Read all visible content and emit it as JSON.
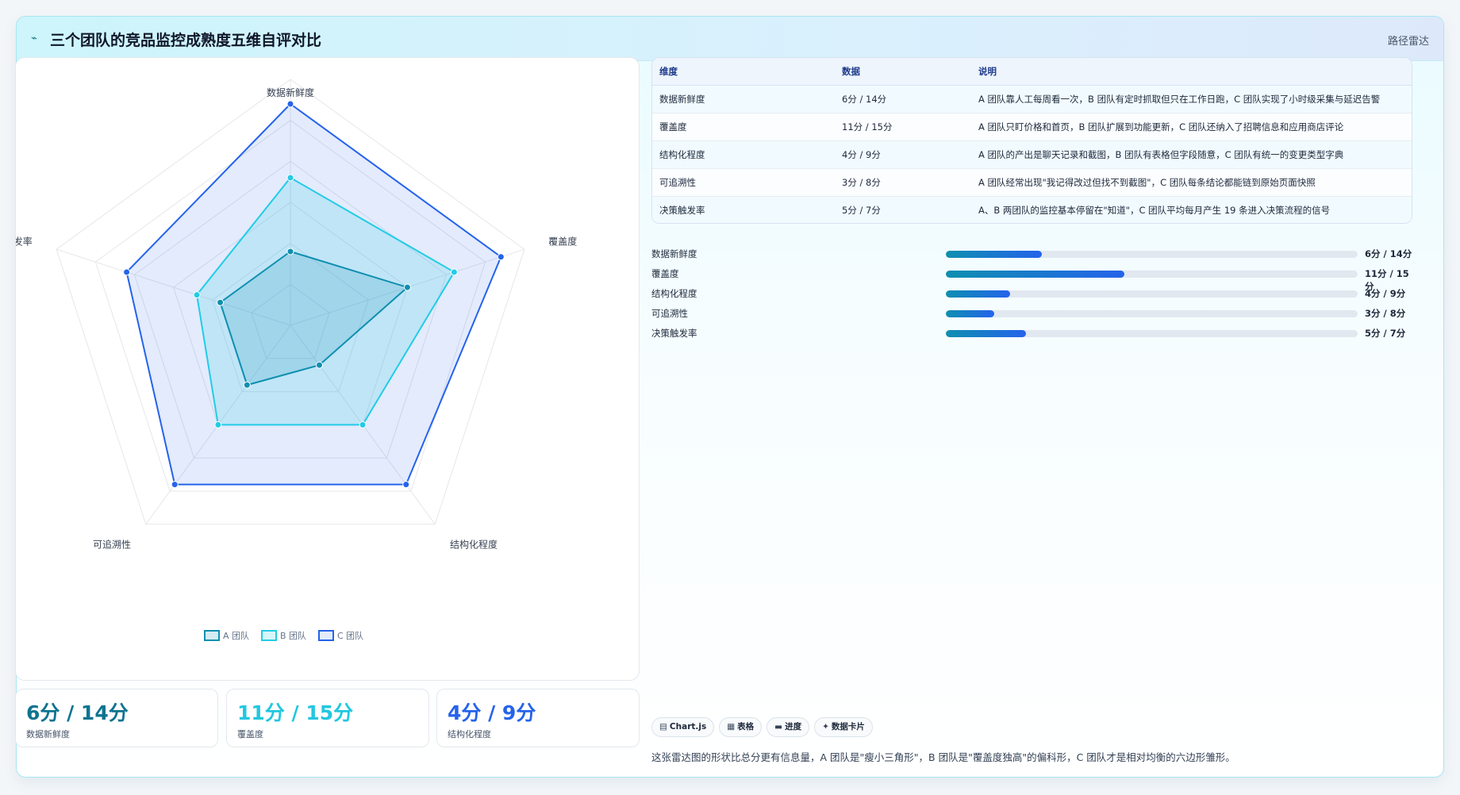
{
  "header": {
    "icon": "trend-line-icon",
    "icon_glyph": "⌁",
    "title": "三个团队的竞品监控成熟度五维自评对比",
    "tag": "路径雷达"
  },
  "chart_data": {
    "type": "radar",
    "axes": [
      "数据新鲜度",
      "覆盖度",
      "结构化程度",
      "可追溯性",
      "决策触发率"
    ],
    "rlim": [
      0,
      10
    ],
    "rings": 6,
    "grid": true,
    "legend_position": "bottom",
    "series": [
      {
        "name": "A 团队",
        "values": [
          3,
          5,
          2,
          3,
          3
        ],
        "color": "#0e8fb0",
        "fill": "rgba(14,143,176,0.18)"
      },
      {
        "name": "B 团队",
        "values": [
          6,
          7,
          5,
          5,
          4
        ],
        "color": "#22cce6",
        "fill": "rgba(34,204,230,0.18)"
      },
      {
        "name": "C 团队",
        "values": [
          9,
          9,
          8,
          8,
          7
        ],
        "color": "#2563eb",
        "fill": "rgba(37,99,235,0.13)"
      }
    ]
  },
  "stats": [
    {
      "value": "6分 / 14分",
      "label": "数据新鲜度",
      "color": "#0e7490"
    },
    {
      "value": "11分 / 15分",
      "label": "覆盖度",
      "color": "#22c7e0"
    },
    {
      "value": "4分 / 9分",
      "label": "结构化程度",
      "color": "#2563eb"
    }
  ],
  "table": {
    "headers": [
      "维度",
      "数据",
      "说明"
    ],
    "rows": [
      [
        "数据新鲜度",
        "6分 / 14分",
        "A 团队靠人工每周看一次，B 团队有定时抓取但只在工作日跑，C 团队实现了小时级采集与延迟告警"
      ],
      [
        "覆盖度",
        "11分 / 15分",
        "A 团队只盯价格和首页，B 团队扩展到功能更新，C 团队还纳入了招聘信息和应用商店评论"
      ],
      [
        "结构化程度",
        "4分 / 9分",
        "A 团队的产出是聊天记录和截图，B 团队有表格但字段随意，C 团队有统一的变更类型字典"
      ],
      [
        "可追溯性",
        "3分 / 8分",
        "A 团队经常出现\"我记得改过但找不到截图\"，C 团队每条结论都能链到原始页面快照"
      ],
      [
        "决策触发率",
        "5分 / 7分",
        "A、B 两团队的监控基本停留在\"知道\"，C 团队平均每月产生 19 条进入决策流程的信号"
      ]
    ]
  },
  "progress": [
    {
      "label": "数据新鲜度",
      "value": "6分 / 14分",
      "fraction": 0.2333
    },
    {
      "label": "覆盖度",
      "value": "11分 / 15分",
      "fraction": 0.4333
    },
    {
      "label": "结构化程度",
      "value": "4分 / 9分",
      "fraction": 0.1556
    },
    {
      "label": "可追溯性",
      "value": "3分 / 8分",
      "fraction": 0.1167
    },
    {
      "label": "决策触发率",
      "value": "5分 / 7分",
      "fraction": 0.1944
    }
  ],
  "pills": [
    {
      "icon": "chart-icon",
      "glyph": "▤",
      "label": "Chart.js"
    },
    {
      "icon": "table-icon",
      "glyph": "▦",
      "label": "表格"
    },
    {
      "icon": "progress-icon",
      "glyph": "▬",
      "label": "进度"
    },
    {
      "icon": "card-icon",
      "glyph": "✦",
      "label": "数据卡片"
    }
  ],
  "footnote": "这张雷达图的形状比总分更有信息量，A 团队是\"瘦小三角形\"，B 团队是\"覆盖度独高\"的偏科形，C 团队才是相对均衡的六边形雏形。"
}
